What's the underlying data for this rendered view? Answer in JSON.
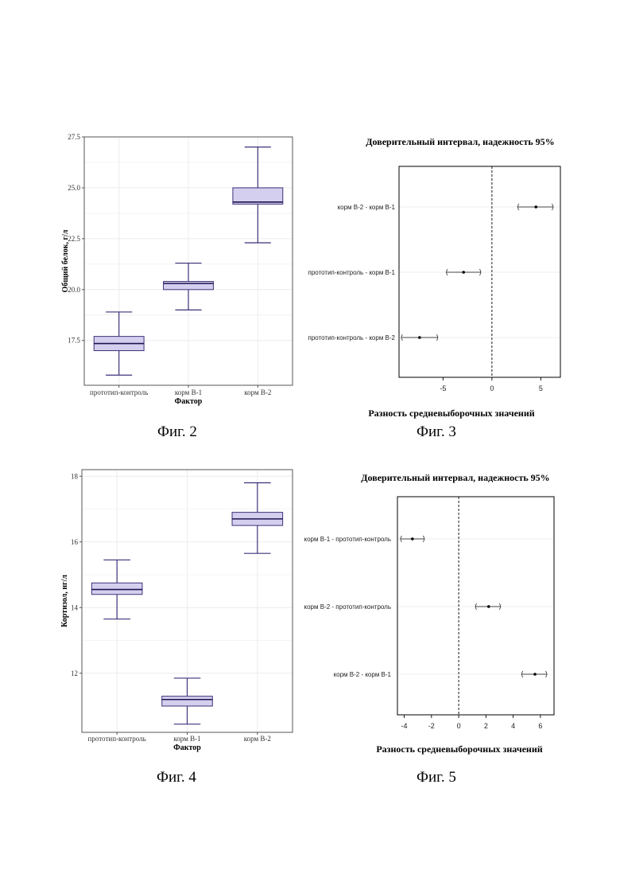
{
  "colors": {
    "box_fill": "#d4cfee",
    "box_stroke": "#3d327a",
    "grid": "#ececec",
    "frame": "#555555"
  },
  "captions": [
    "Фиг. 2",
    "Фиг. 3",
    "Фиг. 4",
    "Фиг. 5"
  ],
  "chart_data": [
    {
      "type": "box",
      "xlabel": "Фактор",
      "ylabel": "Общий белок, г/л",
      "ylim": [
        15.3,
        27.5
      ],
      "yticks": [
        17.5,
        20.0,
        22.5,
        25.0,
        27.5
      ],
      "ytick_labels": [
        "17.5",
        "20.0",
        "22.5",
        "25.0",
        "27.5"
      ],
      "grid": true,
      "categories": [
        "прототип-контроль",
        "корм В-1",
        "корм В-2"
      ],
      "boxes": [
        {
          "min": 15.8,
          "q1": 17.0,
          "median": 17.35,
          "q3": 17.7,
          "max": 18.9
        },
        {
          "min": 19.0,
          "q1": 20.0,
          "median": 20.3,
          "q3": 20.4,
          "max": 21.3
        },
        {
          "min": 22.3,
          "q1": 24.2,
          "median": 24.3,
          "q3": 25.0,
          "max": 27.0
        }
      ]
    },
    {
      "type": "interval",
      "title": "Доверительный интервал, надежность 95%",
      "xlabel": "Разность средневыборочных значений",
      "xlim": [
        -9.5,
        7.0
      ],
      "xticks": [
        -5,
        0,
        5
      ],
      "xtick_labels": [
        "-5",
        "0",
        "5"
      ],
      "reference_line": 0,
      "grid": true,
      "comparisons": [
        {
          "label": "корм В-2 - корм В-1",
          "estimate": 4.5,
          "lower": 2.6,
          "upper": 6.3
        },
        {
          "label": "прототип-контроль - корм В-1",
          "estimate": -2.9,
          "lower": -4.7,
          "upper": -1.1
        },
        {
          "label": "прототип-контроль - корм В-2",
          "estimate": -7.4,
          "lower": -9.3,
          "upper": -5.5
        }
      ]
    },
    {
      "type": "box",
      "xlabel": "Фактор",
      "ylabel": "Кортизол, нг/л",
      "ylim": [
        10.2,
        18.2
      ],
      "yticks": [
        12,
        14,
        16,
        18
      ],
      "ytick_labels": [
        "12",
        "14",
        "16",
        "18"
      ],
      "grid": true,
      "categories": [
        "прототип-контроль",
        "корм В-1",
        "корм В-2"
      ],
      "boxes": [
        {
          "min": 13.65,
          "q1": 14.4,
          "median": 14.55,
          "q3": 14.75,
          "max": 15.45
        },
        {
          "min": 10.45,
          "q1": 11.0,
          "median": 11.2,
          "q3": 11.3,
          "max": 11.85
        },
        {
          "min": 15.65,
          "q1": 16.5,
          "median": 16.7,
          "q3": 16.9,
          "max": 17.8
        }
      ]
    },
    {
      "type": "interval",
      "title": "Доверительный интервал, надежность 95%",
      "xlabel": "Разность средневыборочных значений",
      "xlim": [
        -4.5,
        7.0
      ],
      "xticks": [
        -4,
        -2,
        0,
        2,
        4,
        6
      ],
      "xtick_labels": [
        "-4",
        "-2",
        "0",
        "2",
        "4",
        "6"
      ],
      "reference_line": 0,
      "grid": true,
      "comparisons": [
        {
          "label": "корм В-1 - прототип-контроль",
          "estimate": -3.4,
          "lower": -4.3,
          "upper": -2.5
        },
        {
          "label": "корм В-2 - прототип-контроль",
          "estimate": 2.2,
          "lower": 1.2,
          "upper": 3.1
        },
        {
          "label": "корм В-2 - корм В-1",
          "estimate": 5.6,
          "lower": 4.6,
          "upper": 6.5
        }
      ]
    }
  ]
}
